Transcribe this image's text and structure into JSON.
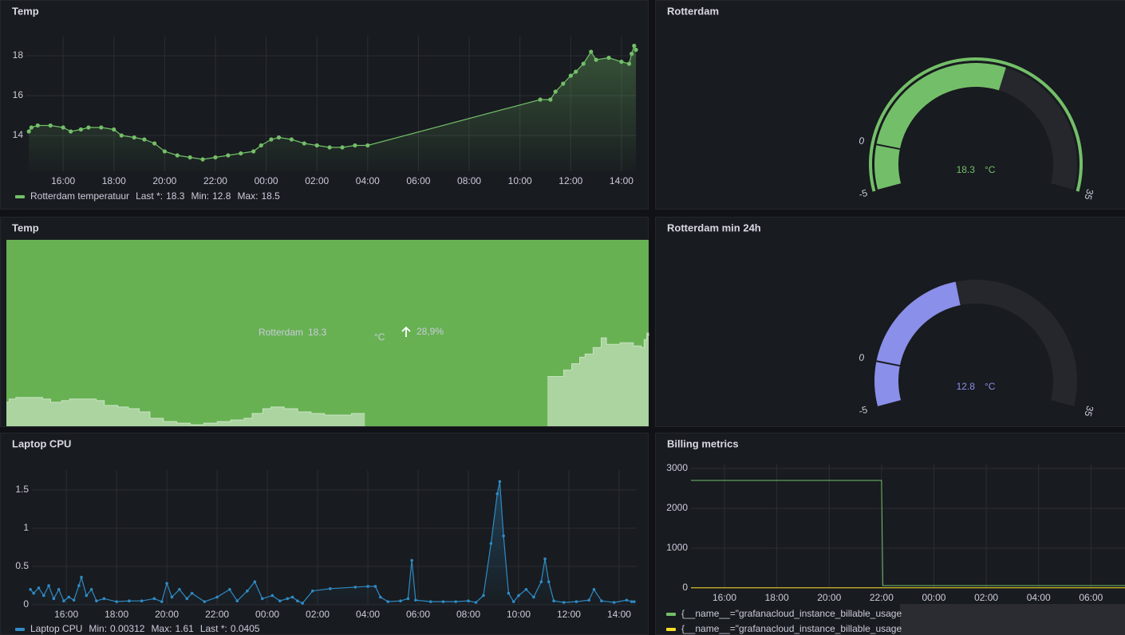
{
  "chart_data": [
    {
      "type": "line",
      "title": "Temp",
      "x": [
        14.65,
        14.75,
        15.0,
        15.5,
        16.0,
        16.3,
        16.7,
        17.0,
        17.5,
        18.0,
        18.3,
        18.8,
        19.2,
        19.6,
        20.0,
        20.5,
        21.0,
        21.5,
        22.0,
        22.5,
        23.0,
        23.5,
        23.8,
        24.2,
        24.5,
        25.0,
        25.5,
        26.0,
        26.5,
        27.0,
        27.5,
        28.0,
        34.8,
        35.2,
        35.4,
        35.7,
        36.0,
        36.2,
        36.5,
        36.8,
        37.0,
        37.5,
        38.0,
        38.3,
        38.4,
        38.5,
        38.57
      ],
      "xlim": [
        14.55,
        38.6
      ],
      "xticks": [
        {
          "value": 16,
          "label": "16:00"
        },
        {
          "value": 18,
          "label": "18:00"
        },
        {
          "value": 20,
          "label": "20:00"
        },
        {
          "value": 22,
          "label": "22:00"
        },
        {
          "value": 24,
          "label": "00:00"
        },
        {
          "value": 26,
          "label": "02:00"
        },
        {
          "value": 28,
          "label": "04:00"
        },
        {
          "value": 30,
          "label": "06:00"
        },
        {
          "value": 32,
          "label": "08:00"
        },
        {
          "value": 34,
          "label": "10:00"
        },
        {
          "value": 36,
          "label": "12:00"
        },
        {
          "value": 38,
          "label": "14:00"
        }
      ],
      "ylim": [
        12.2,
        19
      ],
      "yticks": [
        14,
        16,
        18
      ],
      "grid": true,
      "points": true,
      "area": true,
      "series": [
        {
          "name": "Rotterdam temperatuur",
          "color": "#73bf69",
          "values": [
            14.2,
            14.4,
            14.5,
            14.5,
            14.4,
            14.2,
            14.3,
            14.4,
            14.4,
            14.3,
            14.0,
            13.9,
            13.8,
            13.6,
            13.2,
            13.0,
            12.9,
            12.8,
            12.9,
            13.0,
            13.1,
            13.2,
            13.5,
            13.8,
            13.9,
            13.8,
            13.6,
            13.5,
            13.4,
            13.4,
            13.5,
            13.5,
            15.8,
            15.8,
            16.2,
            16.6,
            17.0,
            17.2,
            17.6,
            18.2,
            17.8,
            17.9,
            17.7,
            17.6,
            18.1,
            18.5,
            18.3
          ],
          "legend_stats": [
            {
              "label": "Last *:",
              "value": 18.3
            },
            {
              "label": "Min:",
              "value": 12.8
            },
            {
              "label": "Max:",
              "value": 18.5
            }
          ]
        }
      ]
    },
    {
      "type": "gauge",
      "title": "Rotterdam",
      "value": 18.3,
      "unit": "°C",
      "min": -5,
      "max": 35,
      "ticks": [
        -5,
        0,
        35
      ],
      "color": "#73bf69",
      "threshold_ring": true
    },
    {
      "type": "stat",
      "title": "Temp",
      "name": "Rotterdam",
      "value": 18.3,
      "unit": "°C",
      "change": 28.9,
      "change_label": "28,9%",
      "color": "#56a64b"
    },
    {
      "type": "gauge",
      "title": "Rotterdam min 24h",
      "value": 12.8,
      "unit": "°C",
      "min": -5,
      "max": 35,
      "ticks": [
        -5,
        0,
        35
      ],
      "color": "#8a8fea",
      "threshold_ring": false
    },
    {
      "type": "line",
      "title": "Laptop CPU",
      "x": [
        14.57,
        14.7,
        14.9,
        15.1,
        15.3,
        15.5,
        15.7,
        15.9,
        16.1,
        16.3,
        16.5,
        16.6,
        16.8,
        17.0,
        17.2,
        17.5,
        18.0,
        18.5,
        19.0,
        19.5,
        19.8,
        20.0,
        20.2,
        20.5,
        20.8,
        21.0,
        21.5,
        22.0,
        22.5,
        22.8,
        23.2,
        23.5,
        23.8,
        24.2,
        24.5,
        24.8,
        25.0,
        25.2,
        25.4,
        25.8,
        26.5,
        27.5,
        28.0,
        28.3,
        28.5,
        28.8,
        29.3,
        29.6,
        29.75,
        29.9,
        30.5,
        31.0,
        31.5,
        32.0,
        32.3,
        32.6,
        32.9,
        33.15,
        33.25,
        33.4,
        33.6,
        33.8,
        34.0,
        34.3,
        34.6,
        34.9,
        35.05,
        35.2,
        35.4,
        35.8,
        36.3,
        36.8,
        37.0,
        37.3,
        37.8,
        38.3,
        38.5,
        38.6
      ],
      "xlim": [
        14.63,
        38.7
      ],
      "xticks": [
        {
          "value": 16,
          "label": "16:00"
        },
        {
          "value": 18,
          "label": "18:00"
        },
        {
          "value": 20,
          "label": "20:00"
        },
        {
          "value": 22,
          "label": "22:00"
        },
        {
          "value": 24,
          "label": "00:00"
        },
        {
          "value": 26,
          "label": "02:00"
        },
        {
          "value": 28,
          "label": "04:00"
        },
        {
          "value": 30,
          "label": "06:00"
        },
        {
          "value": 32,
          "label": "08:00"
        },
        {
          "value": 34,
          "label": "10:00"
        },
        {
          "value": 36,
          "label": "12:00"
        },
        {
          "value": 38,
          "label": "14:00"
        }
      ],
      "ylim": [
        0,
        1.76
      ],
      "yticks": [
        0,
        0.5,
        1,
        1.5
      ],
      "grid": true,
      "points": true,
      "area": true,
      "series": [
        {
          "name": "Laptop CPU",
          "color": "#2f8bc4",
          "values": [
            0.2,
            0.15,
            0.22,
            0.12,
            0.25,
            0.08,
            0.2,
            0.05,
            0.1,
            0.06,
            0.25,
            0.36,
            0.12,
            0.2,
            0.05,
            0.08,
            0.04,
            0.05,
            0.05,
            0.08,
            0.04,
            0.28,
            0.1,
            0.2,
            0.08,
            0.15,
            0.04,
            0.1,
            0.2,
            0.05,
            0.18,
            0.3,
            0.08,
            0.12,
            0.05,
            0.08,
            0.1,
            0.05,
            0.02,
            0.18,
            0.21,
            0.23,
            0.24,
            0.24,
            0.1,
            0.04,
            0.05,
            0.08,
            0.58,
            0.06,
            0.04,
            0.04,
            0.04,
            0.05,
            0.03,
            0.12,
            0.8,
            1.45,
            1.61,
            0.9,
            0.15,
            0.04,
            0.12,
            0.2,
            0.1,
            0.3,
            0.6,
            0.3,
            0.05,
            0.03,
            0.04,
            0.06,
            0.2,
            0.05,
            0.03,
            0.06,
            0.04,
            0.04
          ],
          "legend_stats": [
            {
              "label": "Min:",
              "value": 0.00312
            },
            {
              "label": "Max:",
              "value": 1.61
            },
            {
              "label": "Last *:",
              "value": 0.0405
            }
          ]
        }
      ]
    },
    {
      "type": "line",
      "title": "Billing metrics",
      "x": [
        14.72,
        22.0,
        22.05,
        31.3
      ],
      "xlim": [
        14.72,
        31.3
      ],
      "xticks": [
        {
          "value": 16,
          "label": "16:00"
        },
        {
          "value": 18,
          "label": "18:00"
        },
        {
          "value": 20,
          "label": "20:00"
        },
        {
          "value": 22,
          "label": "22:00"
        },
        {
          "value": 24,
          "label": "00:00"
        },
        {
          "value": 26,
          "label": "02:00"
        },
        {
          "value": 28,
          "label": "04:00"
        },
        {
          "value": 30,
          "label": "06:00"
        }
      ],
      "ylim": [
        0,
        3100
      ],
      "yticks": [
        0,
        1000,
        2000,
        3000
      ],
      "grid": true,
      "points": false,
      "area": false,
      "series": [
        {
          "name": "{__name__=\"grafanacloud_instance_billable_usage",
          "color": "#73bf69",
          "values": [
            2700,
            2700,
            60,
            60
          ]
        },
        {
          "name": "{__name__=\"grafanacloud_instance_billable_usage",
          "color": "#fade2a",
          "values": [
            5,
            5,
            5,
            5
          ]
        }
      ]
    }
  ]
}
